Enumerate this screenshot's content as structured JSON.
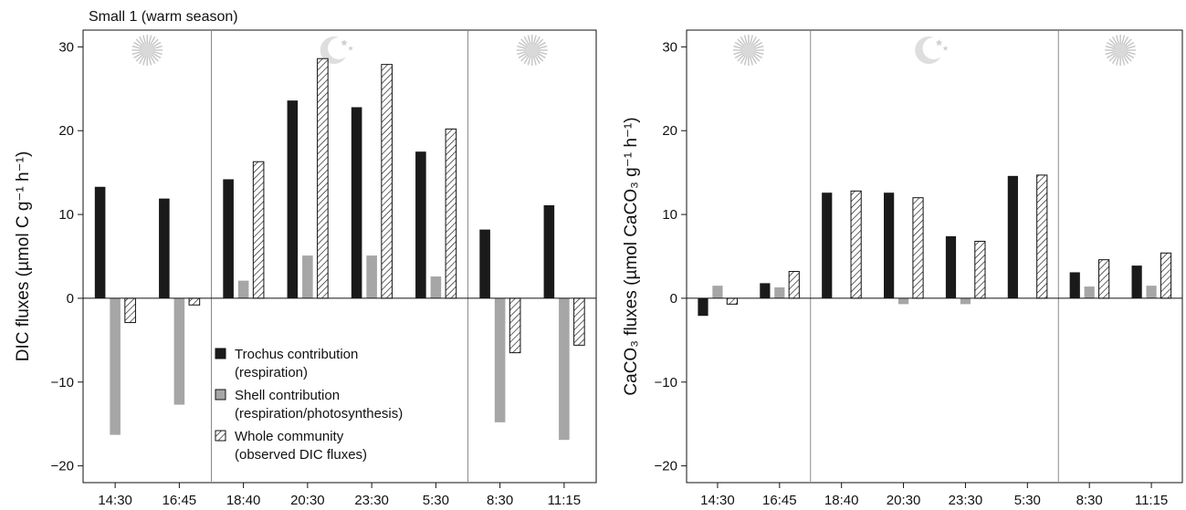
{
  "chart_data": [
    {
      "type": "bar",
      "title": "Small 1 (warm season)",
      "ylabel": "DIC fluxes (µmol C g⁻¹ h⁻¹)",
      "xlabel": "",
      "ylim": [
        -22,
        32
      ],
      "yticks": [
        -20,
        -10,
        0,
        10,
        20,
        30
      ],
      "categories": [
        "14:30",
        "16:45",
        "18:40",
        "20:30",
        "23:30",
        "5:30",
        "8:30",
        "11:15"
      ],
      "series": [
        {
          "name_lines": [
            "Trochus contribution",
            "(respiration)"
          ],
          "pattern": "black",
          "values": [
            13.3,
            11.9,
            14.2,
            23.6,
            22.8,
            17.5,
            8.2,
            11.1
          ]
        },
        {
          "name_lines": [
            "Shell contribution",
            "(respiration/photosynthesis)"
          ],
          "pattern": "grey",
          "values": [
            -16.3,
            -12.7,
            2.1,
            5.1,
            5.1,
            2.6,
            -14.8,
            -16.9
          ]
        },
        {
          "name_lines": [
            "Whole community",
            "(observed DIC fluxes)"
          ],
          "pattern": "hatch",
          "values": [
            -2.9,
            -0.8,
            16.3,
            28.6,
            27.9,
            20.2,
            -6.5,
            -5.6
          ]
        }
      ],
      "periods": [
        {
          "icon": "sun-icon",
          "from_category": 0,
          "to_category": 1
        },
        {
          "icon": "moon-icon",
          "from_category": 2,
          "to_category": 5
        },
        {
          "icon": "sun-icon",
          "from_category": 6,
          "to_category": 7
        }
      ],
      "legend": "center-bottom",
      "grid": false
    },
    {
      "type": "bar",
      "title": "",
      "ylabel": "CaCO₃ fluxes (µmol CaCO₃ g⁻¹ h⁻¹)",
      "xlabel": "",
      "ylim": [
        -22,
        32
      ],
      "yticks": [
        -20,
        -10,
        0,
        10,
        20,
        30
      ],
      "categories": [
        "14:30",
        "16:45",
        "18:40",
        "20:30",
        "23:30",
        "5:30",
        "8:30",
        "11:15"
      ],
      "series": [
        {
          "pattern": "black",
          "values": [
            -2.1,
            1.8,
            12.6,
            12.6,
            7.4,
            14.6,
            3.1,
            3.9
          ]
        },
        {
          "pattern": "grey",
          "values": [
            1.5,
            1.3,
            0.0,
            -0.7,
            -0.7,
            0.0,
            1.4,
            1.5
          ]
        },
        {
          "pattern": "hatch",
          "values": [
            -0.7,
            3.2,
            12.8,
            12.0,
            6.8,
            14.7,
            4.6,
            5.4
          ]
        }
      ],
      "periods": [
        {
          "icon": "sun-icon",
          "from_category": 0,
          "to_category": 1
        },
        {
          "icon": "moon-icon",
          "from_category": 2,
          "to_category": 5
        },
        {
          "icon": "sun-icon",
          "from_category": 6,
          "to_category": 7
        }
      ],
      "grid": false
    }
  ]
}
